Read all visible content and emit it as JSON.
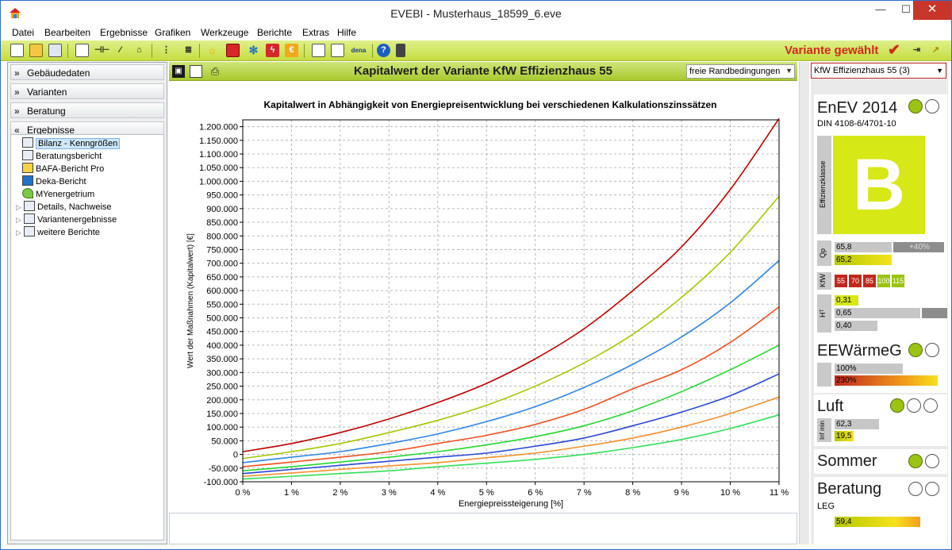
{
  "window": {
    "title": "EVEBI - Musterhaus_18599_6.eve",
    "min": "—",
    "max": "☐",
    "close": "✕"
  },
  "menu": [
    "Datei",
    "Bearbeiten",
    "Ergebnisse",
    "Grafiken",
    "Werkzeuge",
    "Berichte",
    "Extras",
    "Hilfe"
  ],
  "toolbar": {
    "variant_status": "Variante gewählt",
    "variant_check": "✔"
  },
  "left_nav": {
    "sections": [
      "Gebäudedaten",
      "Varianten",
      "Beratung",
      "Ergebnisse"
    ],
    "tree": [
      {
        "label": "Bilanz - Kenngrößen",
        "selected": true,
        "expandable": false
      },
      {
        "label": "Beratungsbericht",
        "selected": false,
        "expandable": false
      },
      {
        "label": "BAFA-Bericht Pro",
        "selected": false,
        "expandable": false
      },
      {
        "label": "Deka-Bericht",
        "selected": false,
        "expandable": false
      },
      {
        "label": "MYenergetrium",
        "selected": false,
        "expandable": false
      },
      {
        "label": "Details, Nachweise",
        "selected": false,
        "expandable": true
      },
      {
        "label": "Variantenergebnisse",
        "selected": false,
        "expandable": true
      },
      {
        "label": "weitere Berichte",
        "selected": false,
        "expandable": true
      }
    ]
  },
  "center": {
    "title": "Kapitalwert der Variante KfW Effizienzhaus 55",
    "randbedingungen": "freie Randbedingungen"
  },
  "chart_data": {
    "type": "line",
    "title": "Kapitalwert in Abhängigkeit von Energiepreisentwicklung bei verschiedenen Kalkulationszinssätzen",
    "xlabel": "Energiepreissteigerung [%]",
    "ylabel": "Wert der Maßnahmen (Kapitalwert) [€]",
    "xlim": [
      0,
      11
    ],
    "ylim": [
      -100000,
      1225000
    ],
    "x_ticks": [
      "0 %",
      "1 %",
      "2 %",
      "3 %",
      "4 %",
      "5 %",
      "6 %",
      "7 %",
      "8 %",
      "9 %",
      "10 %",
      "11 %"
    ],
    "y_ticks": [
      "-100.000",
      "-50.000",
      "0",
      "50.000",
      "100.000",
      "150.000",
      "200.000",
      "250.000",
      "300.000",
      "350.000",
      "400.000",
      "450.000",
      "500.000",
      "550.000",
      "600.000",
      "650.000",
      "700.000",
      "750.000",
      "800.000",
      "850.000",
      "900.000",
      "950.000",
      "1.000.000",
      "1.050.000",
      "1.100.000",
      "1.150.000",
      "1.200.000"
    ],
    "grid": true,
    "x": [
      0,
      1,
      2,
      3,
      4,
      5,
      6,
      7,
      8,
      9,
      10,
      11
    ],
    "series": [
      {
        "color": "#c00000",
        "values": [
          10000,
          40000,
          80000,
          130000,
          190000,
          260000,
          350000,
          460000,
          600000,
          760000,
          970000,
          1230000
        ]
      },
      {
        "color": "#a6c600",
        "values": [
          -15000,
          10000,
          40000,
          80000,
          125000,
          180000,
          250000,
          335000,
          440000,
          575000,
          740000,
          945000
        ]
      },
      {
        "color": "#2f86e8",
        "values": [
          -30000,
          -10000,
          10000,
          40000,
          75000,
          120000,
          175000,
          245000,
          330000,
          430000,
          555000,
          710000
        ]
      },
      {
        "color": "#ef4e1e",
        "values": [
          -45000,
          -28000,
          -10000,
          10000,
          40000,
          70000,
          110000,
          165000,
          240000,
          310000,
          410000,
          540000
        ]
      },
      {
        "color": "#25d830",
        "values": [
          -60000,
          -45000,
          -28000,
          -10000,
          10000,
          35000,
          65000,
          105000,
          160000,
          230000,
          310000,
          400000
        ]
      },
      {
        "color": "#2a47d6",
        "values": [
          -70000,
          -55000,
          -40000,
          -25000,
          -10000,
          5000,
          30000,
          60000,
          105000,
          155000,
          215000,
          295000
        ]
      },
      {
        "color": "#f4902a",
        "values": [
          -80000,
          -68000,
          -55000,
          -42000,
          -30000,
          -12000,
          5000,
          30000,
          60000,
          100000,
          150000,
          210000
        ]
      },
      {
        "color": "#33e05a",
        "values": [
          -90000,
          -80000,
          -70000,
          -60000,
          -45000,
          -32000,
          -18000,
          0,
          25000,
          55000,
          95000,
          145000
        ]
      }
    ]
  },
  "right_panel": {
    "variant_select": "KfW Effizienzhaus 55 (3)",
    "enev": {
      "title": "EnEV 2014",
      "subtitle": "DIN 4108-6/4701-10",
      "class_label": "Effizienzklasse",
      "class": "B",
      "qp_label": "Qp",
      "qp_values": [
        "65,8",
        "+40%",
        "65,2"
      ],
      "kfw_label": "KfW",
      "kfw_values": [
        "55",
        "70",
        "85",
        "100",
        "115"
      ],
      "ht_label": "Hᵀ",
      "ht_values": [
        "0,31",
        "0,65",
        "0,40"
      ]
    },
    "eewaerme": {
      "title": "EEWärmeG",
      "values": [
        "100%",
        "230%"
      ]
    },
    "luft": {
      "title": "Luft",
      "label": "Inf min",
      "values": [
        "62,3",
        "19,5"
      ]
    },
    "sommer": {
      "title": "Sommer"
    },
    "beratung": {
      "title": "Beratung",
      "subtitle": "LEG",
      "value": "59,4"
    },
    "colors": {
      "green": "#9bc313",
      "red": "#c2271e",
      "class_bg": "#d6e816"
    }
  }
}
